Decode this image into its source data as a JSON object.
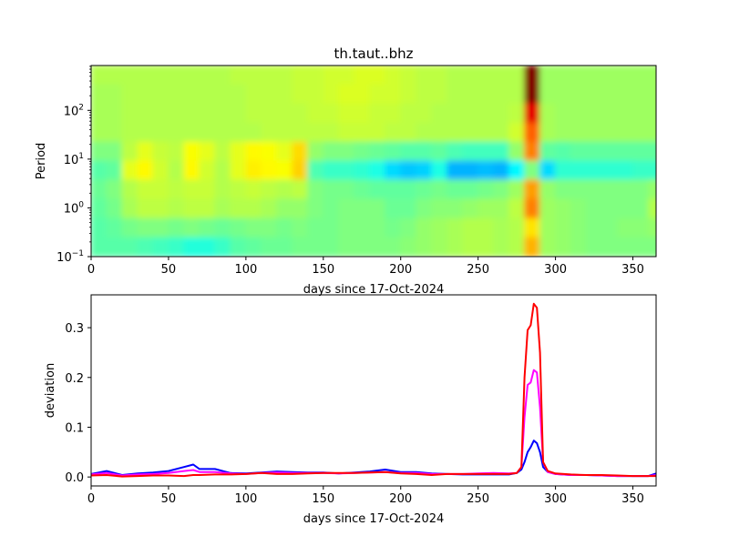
{
  "chart_data": [
    {
      "type": "heatmap",
      "title": "th.taut..bhz",
      "xlabel": "days since 17-Oct-2024",
      "ylabel": "Period",
      "xlim": [
        0,
        365
      ],
      "ylim_log10": [
        -1,
        2.92
      ],
      "y_scale": "log",
      "colormap": "jet",
      "x_ticks": [
        "0",
        "50",
        "100",
        "150",
        "200",
        "250",
        "300",
        "350"
      ],
      "x_tick_values": [
        0,
        50,
        100,
        150,
        200,
        250,
        300,
        350
      ],
      "y_ticks": [
        {
          "value": -1,
          "base": "10",
          "exp": "−1"
        },
        {
          "value": 0,
          "base": "10",
          "exp": "0"
        },
        {
          "value": 1,
          "base": "10",
          "exp": "1"
        },
        {
          "value": 2,
          "base": "10",
          "exp": "2"
        }
      ],
      "column_width_days": 10,
      "row_log10_edges_top_to_bottom": [
        2.92,
        2.53,
        2.14,
        1.74,
        1.35,
        0.96,
        0.57,
        0.18,
        -0.22,
        -0.61,
        -1.0
      ],
      "values_top_to_bottom": [
        [
          0.55,
          0.55,
          0.55,
          0.55,
          0.55,
          0.55,
          0.55,
          0.55,
          0.55,
          0.56,
          0.56,
          0.56,
          0.56,
          0.57,
          0.57,
          0.58,
          0.58,
          0.59,
          0.59,
          0.58,
          0.57,
          0.56,
          0.56,
          0.55,
          0.55,
          0.55,
          0.55,
          0.55,
          1.0,
          0.53,
          0.53,
          0.53,
          0.53,
          0.53,
          0.53,
          0.53,
          0.53
        ],
        [
          0.54,
          0.54,
          0.55,
          0.55,
          0.55,
          0.55,
          0.55,
          0.55,
          0.55,
          0.55,
          0.56,
          0.56,
          0.56,
          0.57,
          0.57,
          0.58,
          0.59,
          0.59,
          0.58,
          0.58,
          0.57,
          0.56,
          0.56,
          0.55,
          0.55,
          0.55,
          0.55,
          0.55,
          1.0,
          0.53,
          0.53,
          0.53,
          0.53,
          0.53,
          0.53,
          0.53,
          0.53
        ],
        [
          0.54,
          0.54,
          0.55,
          0.55,
          0.55,
          0.55,
          0.55,
          0.55,
          0.55,
          0.55,
          0.56,
          0.56,
          0.56,
          0.56,
          0.57,
          0.57,
          0.58,
          0.58,
          0.57,
          0.57,
          0.56,
          0.56,
          0.55,
          0.55,
          0.55,
          0.55,
          0.55,
          0.56,
          0.9,
          0.54,
          0.53,
          0.53,
          0.53,
          0.53,
          0.53,
          0.53,
          0.53
        ],
        [
          0.54,
          0.54,
          0.55,
          0.55,
          0.55,
          0.55,
          0.55,
          0.55,
          0.55,
          0.55,
          0.55,
          0.56,
          0.56,
          0.56,
          0.56,
          0.56,
          0.57,
          0.57,
          0.57,
          0.56,
          0.56,
          0.55,
          0.55,
          0.55,
          0.55,
          0.55,
          0.55,
          0.58,
          0.78,
          0.54,
          0.53,
          0.53,
          0.53,
          0.53,
          0.53,
          0.53,
          0.53
        ],
        [
          0.5,
          0.5,
          0.56,
          0.6,
          0.57,
          0.56,
          0.62,
          0.6,
          0.56,
          0.6,
          0.63,
          0.62,
          0.6,
          0.66,
          0.52,
          0.5,
          0.5,
          0.49,
          0.48,
          0.47,
          0.46,
          0.46,
          0.47,
          0.45,
          0.44,
          0.44,
          0.44,
          0.52,
          0.75,
          0.47,
          0.46,
          0.47,
          0.47,
          0.47,
          0.47,
          0.47,
          0.47
        ],
        [
          0.46,
          0.47,
          0.6,
          0.63,
          0.58,
          0.55,
          0.63,
          0.58,
          0.55,
          0.6,
          0.64,
          0.63,
          0.62,
          0.67,
          0.45,
          0.43,
          0.43,
          0.42,
          0.4,
          0.34,
          0.32,
          0.33,
          0.4,
          0.3,
          0.3,
          0.31,
          0.3,
          0.37,
          0.5,
          0.34,
          0.42,
          0.42,
          0.42,
          0.42,
          0.42,
          0.43,
          0.43
        ],
        [
          0.48,
          0.5,
          0.55,
          0.57,
          0.57,
          0.56,
          0.57,
          0.57,
          0.55,
          0.56,
          0.57,
          0.56,
          0.55,
          0.56,
          0.5,
          0.49,
          0.49,
          0.48,
          0.47,
          0.47,
          0.47,
          0.48,
          0.49,
          0.48,
          0.48,
          0.49,
          0.5,
          0.53,
          0.72,
          0.52,
          0.5,
          0.5,
          0.5,
          0.5,
          0.5,
          0.5,
          0.52
        ],
        [
          0.47,
          0.49,
          0.54,
          0.56,
          0.56,
          0.55,
          0.56,
          0.56,
          0.54,
          0.55,
          0.55,
          0.54,
          0.52,
          0.52,
          0.5,
          0.49,
          0.5,
          0.5,
          0.5,
          0.48,
          0.48,
          0.5,
          0.51,
          0.51,
          0.52,
          0.53,
          0.53,
          0.56,
          0.75,
          0.53,
          0.52,
          0.51,
          0.5,
          0.5,
          0.5,
          0.5,
          0.55
        ],
        [
          0.46,
          0.47,
          0.49,
          0.5,
          0.5,
          0.49,
          0.5,
          0.49,
          0.48,
          0.49,
          0.5,
          0.5,
          0.49,
          0.5,
          0.49,
          0.49,
          0.5,
          0.5,
          0.5,
          0.49,
          0.5,
          0.52,
          0.53,
          0.54,
          0.55,
          0.55,
          0.54,
          0.55,
          0.65,
          0.53,
          0.52,
          0.51,
          0.5,
          0.5,
          0.51,
          0.51,
          0.52
        ],
        [
          0.46,
          0.46,
          0.46,
          0.45,
          0.44,
          0.43,
          0.41,
          0.41,
          0.43,
          0.46,
          0.47,
          0.48,
          0.48,
          0.49,
          0.49,
          0.49,
          0.5,
          0.5,
          0.5,
          0.5,
          0.51,
          0.52,
          0.53,
          0.54,
          0.55,
          0.55,
          0.54,
          0.55,
          0.7,
          0.53,
          0.52,
          0.51,
          0.5,
          0.5,
          0.5,
          0.5,
          0.5
        ]
      ]
    },
    {
      "type": "line",
      "xlabel": "days since 17-Oct-2024",
      "ylabel": "deviation",
      "xlim": [
        0,
        365
      ],
      "ylim": [
        -0.018,
        0.366
      ],
      "x_ticks": [
        "0",
        "50",
        "100",
        "150",
        "200",
        "250",
        "300",
        "350"
      ],
      "x_tick_values": [
        0,
        50,
        100,
        150,
        200,
        250,
        300,
        350
      ],
      "y_ticks": [
        "0.0",
        "0.1",
        "0.2",
        "0.3"
      ],
      "y_tick_values": [
        0,
        0.1,
        0.2,
        0.3
      ],
      "x": [
        0,
        10,
        20,
        30,
        40,
        50,
        60,
        66,
        70,
        80,
        90,
        100,
        110,
        120,
        130,
        140,
        150,
        160,
        170,
        180,
        190,
        200,
        210,
        220,
        230,
        240,
        250,
        260,
        270,
        275,
        278,
        280,
        282,
        284,
        286,
        288,
        290,
        292,
        295,
        300,
        310,
        320,
        330,
        340,
        350,
        360,
        365
      ],
      "series": [
        {
          "name": "blue",
          "color": "#0000ff",
          "values": [
            0.006,
            0.012,
            0.004,
            0.007,
            0.009,
            0.012,
            0.02,
            0.025,
            0.016,
            0.016,
            0.008,
            0.007,
            0.009,
            0.011,
            0.01,
            0.009,
            0.009,
            0.007,
            0.009,
            0.011,
            0.015,
            0.01,
            0.01,
            0.007,
            0.006,
            0.005,
            0.005,
            0.005,
            0.005,
            0.008,
            0.015,
            0.03,
            0.05,
            0.06,
            0.073,
            0.068,
            0.05,
            0.02,
            0.01,
            0.006,
            0.004,
            0.004,
            0.003,
            0.002,
            0.002,
            0.002,
            0.007
          ]
        },
        {
          "name": "magenta",
          "color": "#ff00ff",
          "values": [
            0.005,
            0.008,
            0.003,
            0.005,
            0.006,
            0.008,
            0.012,
            0.014,
            0.01,
            0.01,
            0.007,
            0.006,
            0.008,
            0.009,
            0.008,
            0.008,
            0.008,
            0.007,
            0.008,
            0.009,
            0.01,
            0.008,
            0.008,
            0.006,
            0.006,
            0.006,
            0.007,
            0.008,
            0.007,
            0.008,
            0.02,
            0.12,
            0.185,
            0.19,
            0.215,
            0.21,
            0.14,
            0.03,
            0.01,
            0.006,
            0.004,
            0.004,
            0.003,
            0.002,
            0.002,
            0.002,
            0.004
          ]
        },
        {
          "name": "red",
          "color": "#ff0000",
          "values": [
            0.003,
            0.004,
            0.001,
            0.002,
            0.003,
            0.003,
            0.002,
            0.004,
            0.004,
            0.005,
            0.005,
            0.006,
            0.008,
            0.006,
            0.006,
            0.007,
            0.008,
            0.008,
            0.008,
            0.009,
            0.01,
            0.007,
            0.006,
            0.004,
            0.006,
            0.006,
            0.006,
            0.006,
            0.006,
            0.008,
            0.02,
            0.2,
            0.295,
            0.305,
            0.348,
            0.34,
            0.25,
            0.03,
            0.012,
            0.007,
            0.005,
            0.004,
            0.004,
            0.003,
            0.002,
            0.002,
            0.002
          ]
        }
      ]
    }
  ]
}
